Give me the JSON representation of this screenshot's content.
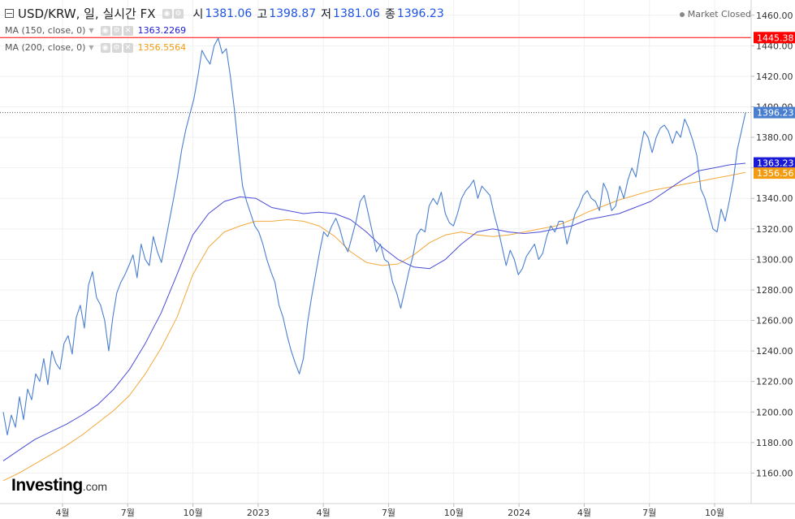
{
  "header": {
    "symbol": "USD/KRW, 일, 실시간 FX",
    "open_label": "시",
    "open_value": "1381.06",
    "high_label": "고",
    "high_value": "1398.87",
    "low_label": "저",
    "low_value": "1381.06",
    "close_label": "종",
    "close_value": "1396.23",
    "status": "Market Closed"
  },
  "indicators": [
    {
      "label": "MA (150, close, 0)",
      "value": "1363.2269",
      "color": "#1a1ad6"
    },
    {
      "label": "MA (200, close, 0)",
      "value": "1356.5564",
      "color": "#f39c12"
    }
  ],
  "logo": {
    "brand": "Investing",
    "suffix": ".com"
  },
  "chart_data": {
    "type": "line",
    "ylim": [
      1140,
      1470
    ],
    "y_ticks": [
      "1160.00",
      "1180.00",
      "1200.00",
      "1220.00",
      "1240.00",
      "1260.00",
      "1280.00",
      "1300.00",
      "1320.00",
      "1340.00",
      "1360.00",
      "1380.00",
      "1400.00",
      "1420.00",
      "1440.00",
      "1460.00"
    ],
    "x_ticks": [
      "4월",
      "7월",
      "10월",
      "2023",
      "4월",
      "7월",
      "10월",
      "2024",
      "4월",
      "7월",
      "10월"
    ],
    "price_labels": {
      "high_line": "1445.38",
      "close": "1396.23",
      "ma150": "1363.23",
      "ma200": "1356.56"
    },
    "colors": {
      "price": "#4a7fd0",
      "ma150": "#4b4bd8",
      "ma200": "#f2a93b",
      "high_line": "#ff0000",
      "close_badge": "#4a7fd0",
      "ma150_badge": "#1a1ad6",
      "ma200_badge": "#f39c12"
    },
    "series": [
      {
        "values": [
          1200,
          1185,
          1198,
          1190,
          1210,
          1195,
          1215,
          1208,
          1225,
          1220,
          1235,
          1218,
          1240,
          1232,
          1228,
          1245,
          1250,
          1238,
          1262,
          1270,
          1255,
          1283,
          1292,
          1275,
          1270,
          1260,
          1240,
          1262,
          1278,
          1285,
          1290,
          1296,
          1303,
          1288,
          1310,
          1300,
          1296,
          1315,
          1305,
          1298,
          1312,
          1326,
          1340,
          1355,
          1372,
          1385,
          1395,
          1405,
          1420,
          1437,
          1432,
          1428,
          1440,
          1445,
          1435,
          1438,
          1420,
          1398,
          1372,
          1348,
          1338,
          1330,
          1322,
          1318,
          1310,
          1300,
          1292,
          1285,
          1270,
          1262,
          1250,
          1240,
          1232,
          1225,
          1235,
          1258,
          1275,
          1290,
          1305,
          1318,
          1315,
          1322,
          1327,
          1320,
          1310,
          1305,
          1315,
          1325,
          1338,
          1342,
          1330,
          1318,
          1305,
          1310,
          1300,
          1298,
          1285,
          1278,
          1268,
          1280,
          1292,
          1302,
          1316,
          1320,
          1318,
          1335,
          1340,
          1336,
          1344,
          1330,
          1324,
          1322,
          1330,
          1340,
          1345,
          1348,
          1352,
          1340,
          1348,
          1345,
          1342,
          1330,
          1320,
          1308,
          1296,
          1306,
          1300,
          1290,
          1294,
          1302,
          1306,
          1310,
          1300,
          1304,
          1315,
          1322,
          1318,
          1325,
          1325,
          1310,
          1320,
          1330,
          1335,
          1342,
          1345,
          1340,
          1338,
          1332,
          1350,
          1344,
          1332,
          1335,
          1348,
          1340,
          1352,
          1360,
          1354,
          1370,
          1384,
          1380,
          1370,
          1380,
          1386,
          1388,
          1384,
          1376,
          1384,
          1380,
          1392,
          1386,
          1378,
          1368,
          1346,
          1340,
          1330,
          1320,
          1318,
          1333,
          1325,
          1338,
          1352,
          1372,
          1384,
          1396
        ]
      },
      {
        "values": [
          1168,
          1175,
          1182,
          1187,
          1192,
          1198,
          1205,
          1215,
          1228,
          1245,
          1265,
          1290,
          1316,
          1330,
          1338,
          1341,
          1340,
          1334,
          1332,
          1330,
          1331,
          1330,
          1326,
          1318,
          1308,
          1300,
          1295,
          1294,
          1300,
          1310,
          1318,
          1320,
          1318,
          1317,
          1318,
          1320,
          1322,
          1326,
          1328,
          1330,
          1334,
          1338,
          1345,
          1352,
          1358,
          1360,
          1362,
          1363
        ]
      },
      {
        "values": [
          1155,
          1160,
          1166,
          1172,
          1178,
          1185,
          1193,
          1201,
          1211,
          1225,
          1242,
          1262,
          1290,
          1308,
          1318,
          1322,
          1325,
          1325,
          1326,
          1325,
          1322,
          1315,
          1305,
          1298,
          1296,
          1297,
          1303,
          1311,
          1316,
          1318,
          1316,
          1315,
          1316,
          1318,
          1320,
          1322,
          1326,
          1331,
          1335,
          1339,
          1342,
          1345,
          1347,
          1349,
          1351,
          1353,
          1355,
          1357
        ]
      }
    ]
  }
}
